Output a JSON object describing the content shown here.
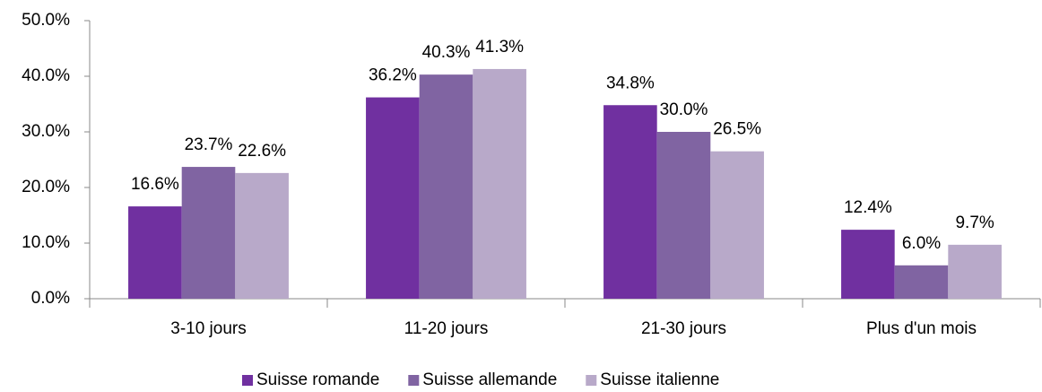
{
  "chart_data": {
    "type": "bar",
    "categories": [
      "3-10 jours",
      "11-20 jours",
      "21-30 jours",
      "Plus d'un mois"
    ],
    "series": [
      {
        "name": "Suisse romande",
        "color": "#7030a0",
        "values": [
          16.6,
          36.2,
          34.8,
          12.4
        ],
        "value_labels": [
          "16.6%",
          "36.2%",
          "34.8%",
          "12.4%"
        ]
      },
      {
        "name": "Suisse allemande",
        "color": "#8064a2",
        "values": [
          23.7,
          40.3,
          30.0,
          6.0
        ],
        "value_labels": [
          "23.7%",
          "40.3%",
          "30.0%",
          "6.0%"
        ]
      },
      {
        "name": "Suisse italienne",
        "color": "#b8a9c9",
        "values": [
          22.6,
          41.3,
          26.5,
          9.7
        ],
        "value_labels": [
          "22.6%",
          "41.3%",
          "26.5%",
          "9.7%"
        ]
      }
    ],
    "ylim": [
      0,
      50
    ],
    "yticks": [
      {
        "value": 0,
        "label": "0.0%"
      },
      {
        "value": 10,
        "label": "10.0%"
      },
      {
        "value": 20,
        "label": "20.0%"
      },
      {
        "value": 30,
        "label": "30.0%"
      },
      {
        "value": 40,
        "label": "40.0%"
      },
      {
        "value": 50,
        "label": "50.0%"
      }
    ],
    "legend": "bottom"
  }
}
